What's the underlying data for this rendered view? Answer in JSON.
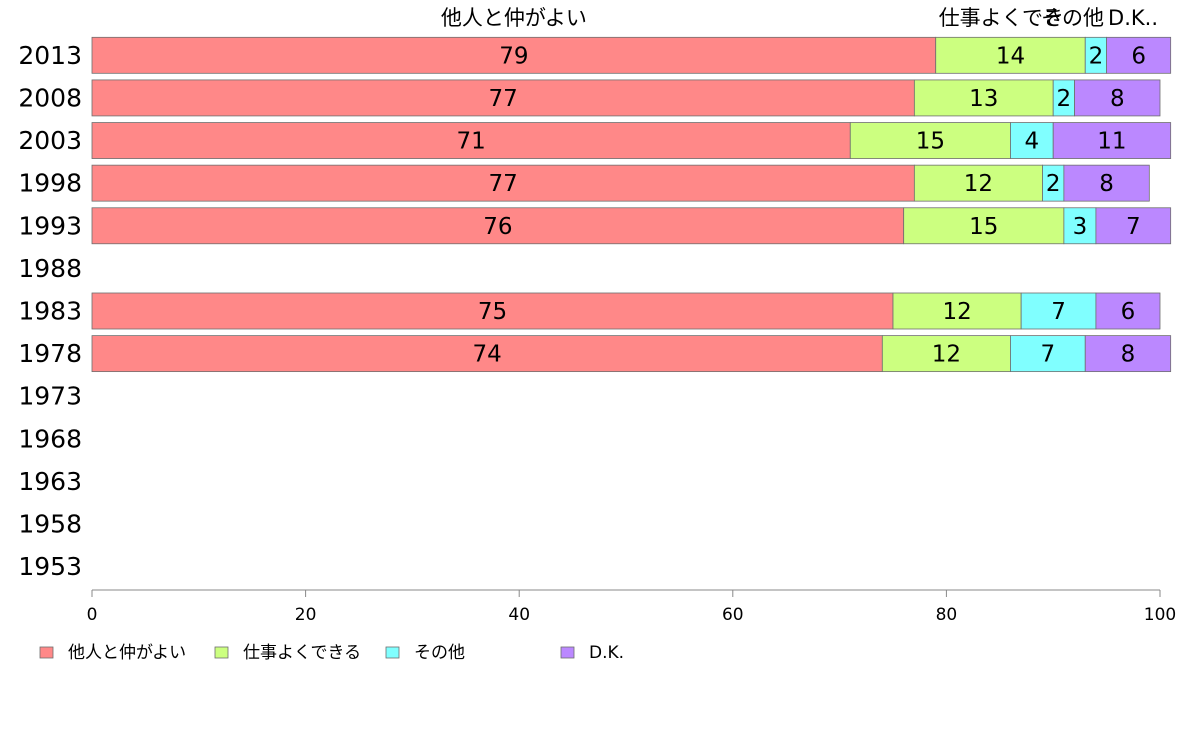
{
  "chart_data": {
    "type": "bar",
    "orientation": "horizontal",
    "stacked": true,
    "categories": [
      "2013",
      "2008",
      "2003",
      "1998",
      "1993",
      "1988",
      "1983",
      "1978",
      "1973",
      "1968",
      "1963",
      "1958",
      "1953"
    ],
    "series": [
      {
        "name": "他人と仲がよい",
        "color": "#ff8888",
        "values": [
          79,
          77,
          71,
          77,
          76,
          null,
          75,
          74,
          null,
          null,
          null,
          null,
          null
        ]
      },
      {
        "name": "仕事よくできる",
        "color": "#ccff80",
        "values": [
          14,
          13,
          15,
          12,
          15,
          null,
          12,
          12,
          null,
          null,
          null,
          null,
          null
        ]
      },
      {
        "name": "その他",
        "color": "#80ffff",
        "values": [
          2,
          2,
          4,
          2,
          3,
          null,
          7,
          7,
          null,
          null,
          null,
          null,
          null
        ]
      },
      {
        "name": "D.K.",
        "color": "#bb88ff",
        "values": [
          6,
          8,
          11,
          8,
          7,
          null,
          6,
          8,
          null,
          null,
          null,
          null,
          null
        ]
      }
    ],
    "top_labels": [
      "他人と仲がよい",
      "仕事よくでき",
      "その他",
      "D.K.."
    ],
    "xlim": [
      0,
      100
    ],
    "xticks": [
      0,
      20,
      40,
      60,
      80,
      100
    ],
    "grid": false,
    "legend_position": "bottom-left"
  }
}
